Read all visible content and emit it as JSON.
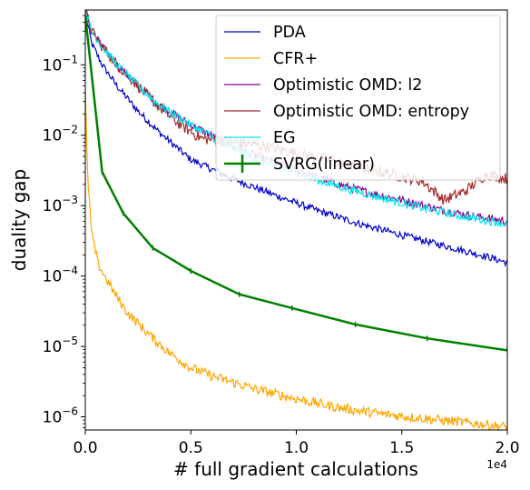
{
  "chart_data": {
    "type": "line",
    "title": "",
    "xlabel": "# full gradient calculations",
    "ylabel": "duality gap",
    "x_multiplier_label": "1e4",
    "xlim": [
      0,
      20000
    ],
    "ylim": [
      6.5e-07,
      0.6
    ],
    "yscale": "log",
    "grid": false,
    "legend_position": "top-right",
    "x_ticks": [
      {
        "value": 0,
        "label": "0.0"
      },
      {
        "value": 5000,
        "label": "0.5"
      },
      {
        "value": 10000,
        "label": "1.0"
      },
      {
        "value": 15000,
        "label": "1.5"
      },
      {
        "value": 20000,
        "label": "2.0"
      }
    ],
    "y_ticks": [
      {
        "value": 1e-06,
        "base": "10",
        "exp": "−6"
      },
      {
        "value": 1e-05,
        "base": "10",
        "exp": "−5"
      },
      {
        "value": 0.0001,
        "base": "10",
        "exp": "−4"
      },
      {
        "value": 0.001,
        "base": "10",
        "exp": "−3"
      },
      {
        "value": 0.01,
        "base": "10",
        "exp": "−2"
      },
      {
        "value": 0.1,
        "base": "10",
        "exp": "−1"
      }
    ],
    "series": [
      {
        "name": "PDA",
        "color": "#0000cc",
        "noise": 0.05,
        "x": [
          0,
          300,
          800,
          1500,
          2500,
          3500,
          5000,
          7000,
          9000,
          11000,
          13000,
          15000,
          17000,
          19000,
          20000
        ],
        "y": [
          0.55,
          0.2,
          0.1,
          0.05,
          0.022,
          0.011,
          0.0045,
          0.0024,
          0.0014,
          0.00085,
          0.00055,
          0.00038,
          0.00027,
          0.00019,
          0.000155
        ]
      },
      {
        "name": "CFR+",
        "color": "#ffa500",
        "noise": 0.07,
        "x": [
          0,
          100,
          300,
          600,
          1000,
          1500,
          2000,
          3000,
          4000,
          5000,
          6000,
          8000,
          10000,
          12000,
          14000,
          16000,
          18000,
          20000
        ],
        "y": [
          0.05,
          0.003,
          0.0004,
          0.00015,
          9e-05,
          5e-05,
          3e-05,
          1.5e-05,
          8e-06,
          5e-06,
          3.8e-06,
          2.5e-06,
          1.8e-06,
          1.35e-06,
          1.1e-06,
          9.5e-07,
          8.3e-07,
          7.2e-07
        ]
      },
      {
        "name": "Optimistic OMD: l2",
        "color": "#8b008b",
        "noise": 0.06,
        "x": [
          0,
          300,
          800,
          1500,
          2500,
          3500,
          5000,
          6500,
          8000,
          9500,
          11000,
          12500,
          14000,
          15500,
          17000,
          18500,
          20000
        ],
        "y": [
          0.6,
          0.3,
          0.18,
          0.1,
          0.05,
          0.027,
          0.014,
          0.0082,
          0.0052,
          0.0036,
          0.0025,
          0.0018,
          0.0014,
          0.0011,
          0.00085,
          0.0007,
          0.0006
        ]
      },
      {
        "name": "Optimistic OMD: entropy",
        "color": "#a52a2a",
        "noise": 0.08,
        "x": [
          0,
          300,
          800,
          1500,
          2500,
          3500,
          4500,
          5500,
          7000,
          8500,
          10000,
          11500,
          13000,
          14500,
          16000,
          17000,
          18000,
          19000,
          20000
        ],
        "y": [
          0.6,
          0.3,
          0.18,
          0.1,
          0.05,
          0.025,
          0.014,
          0.009,
          0.008,
          0.007,
          0.0055,
          0.0045,
          0.0035,
          0.0028,
          0.0022,
          0.0012,
          0.0016,
          0.0028,
          0.0024
        ]
      },
      {
        "name": "EG",
        "color": "#00e5ee",
        "noise": 0.06,
        "x": [
          0,
          300,
          800,
          1500,
          2500,
          3500,
          5000,
          6500,
          8000,
          9500,
          11000,
          12500,
          14000,
          15500,
          17000,
          18500,
          20000
        ],
        "y": [
          0.6,
          0.3,
          0.18,
          0.1,
          0.05,
          0.027,
          0.014,
          0.0078,
          0.0048,
          0.0033,
          0.0023,
          0.0017,
          0.0013,
          0.001,
          0.0008,
          0.00065,
          0.00055
        ]
      },
      {
        "name": "SVRG(linear)",
        "color": "#008000",
        "noise": 0,
        "x": [
          0,
          800,
          1800,
          3200,
          5000,
          7300,
          9800,
          12800,
          16200,
          20000
        ],
        "y": [
          0.5,
          0.003,
          0.00078,
          0.00025,
          0.000118,
          5.5e-05,
          3.5e-05,
          2.05e-05,
          1.3e-05,
          8.8e-06
        ]
      }
    ]
  }
}
